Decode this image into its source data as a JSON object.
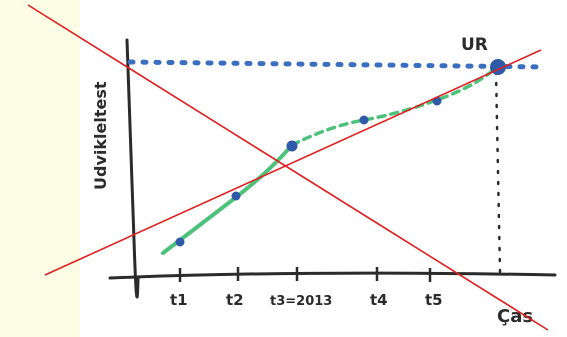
{
  "y_axis_label": "Udvikleltest",
  "x_axis_label": "Ças",
  "target_label": "UR",
  "tick_labels": [
    "t1",
    "t2",
    "t3=2013",
    "t4",
    "t5"
  ],
  "colors": {
    "background": "#fdfde6",
    "axes": "#2b2b2b",
    "target_dots": "#3a6fc0",
    "curve": "#4cc27a",
    "markers": "#2e5aa8",
    "cross": "#e02020"
  }
}
